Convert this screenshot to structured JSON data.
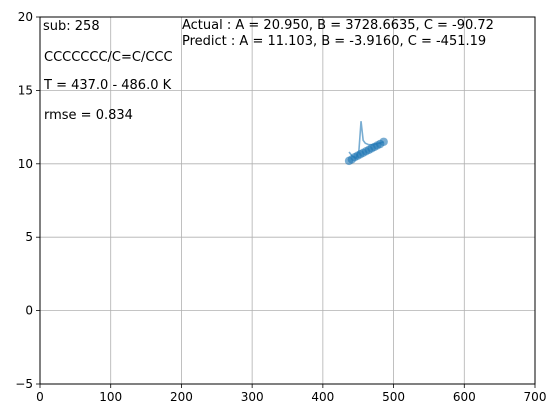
{
  "chart_data": {
    "type": "scatter",
    "xlim": [
      0,
      700
    ],
    "ylim": [
      -5,
      20
    ],
    "x_ticks": [
      0,
      100,
      200,
      300,
      400,
      500,
      600,
      700
    ],
    "y_ticks": [
      -5,
      0,
      5,
      10,
      15,
      20
    ],
    "x_tick_labels": [
      "0",
      "100",
      "200",
      "300",
      "400",
      "500",
      "600",
      "700"
    ],
    "y_tick_labels": [
      "−5",
      "0",
      "5",
      "10",
      "15",
      "20"
    ],
    "grid": true,
    "colors": {
      "series": "#1f77b4",
      "grid": "#b0b0b0",
      "axes": "#000000"
    },
    "annotations": {
      "sub": " sub: 258",
      "smiles": "CCCCCCC/C=C/CCC",
      "temp_range": "T = 437.0 - 486.0 K",
      "rmse": "rmse = 0.834",
      "actual": "Actual  : A = 20.950, B = 3728.6635,  C = -90.72",
      "predict": "Predict : A = 11.103, B = -3.9160,  C = -451.19"
    },
    "series": [
      {
        "kind": "points",
        "x": [
          437,
          441,
          445,
          449,
          453,
          457,
          461,
          465,
          469,
          473,
          477,
          481,
          486
        ],
        "y": [
          10.2,
          10.3,
          10.45,
          10.55,
          10.65,
          10.75,
          10.85,
          10.95,
          11.05,
          11.15,
          11.25,
          11.35,
          11.5
        ]
      },
      {
        "kind": "line",
        "x": [
          437,
          442,
          447,
          451,
          454,
          457,
          460,
          465,
          470,
          475,
          480,
          486
        ],
        "y": [
          10.8,
          10.5,
          10.4,
          10.9,
          12.9,
          11.6,
          11.4,
          11.3,
          11.3,
          11.35,
          11.4,
          11.5
        ]
      }
    ]
  }
}
